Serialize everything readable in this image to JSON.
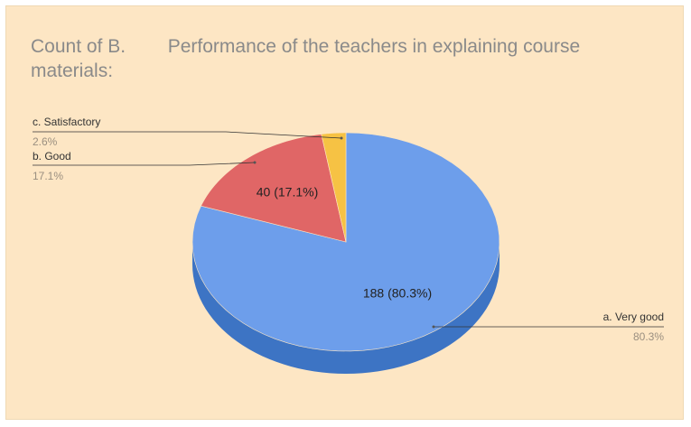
{
  "chart_data": {
    "type": "pie3d",
    "title": "Count of B.        Performance of the teachers in explaining course materials:",
    "categories": [
      "a. Very good",
      "b. Good",
      "c. Satisfactory"
    ],
    "values": [
      188,
      40,
      6
    ],
    "value_labels": [
      "188 (80.3%)",
      "40 (17.1%)",
      null
    ],
    "percent_labels": [
      "80.3%",
      "17.1%",
      "2.6%"
    ],
    "colors": [
      "#6d9eeb",
      "#e06666",
      "#f6c244"
    ],
    "side_colors": [
      "#3d74c4",
      "#b04444",
      "#c99a2a"
    ]
  }
}
